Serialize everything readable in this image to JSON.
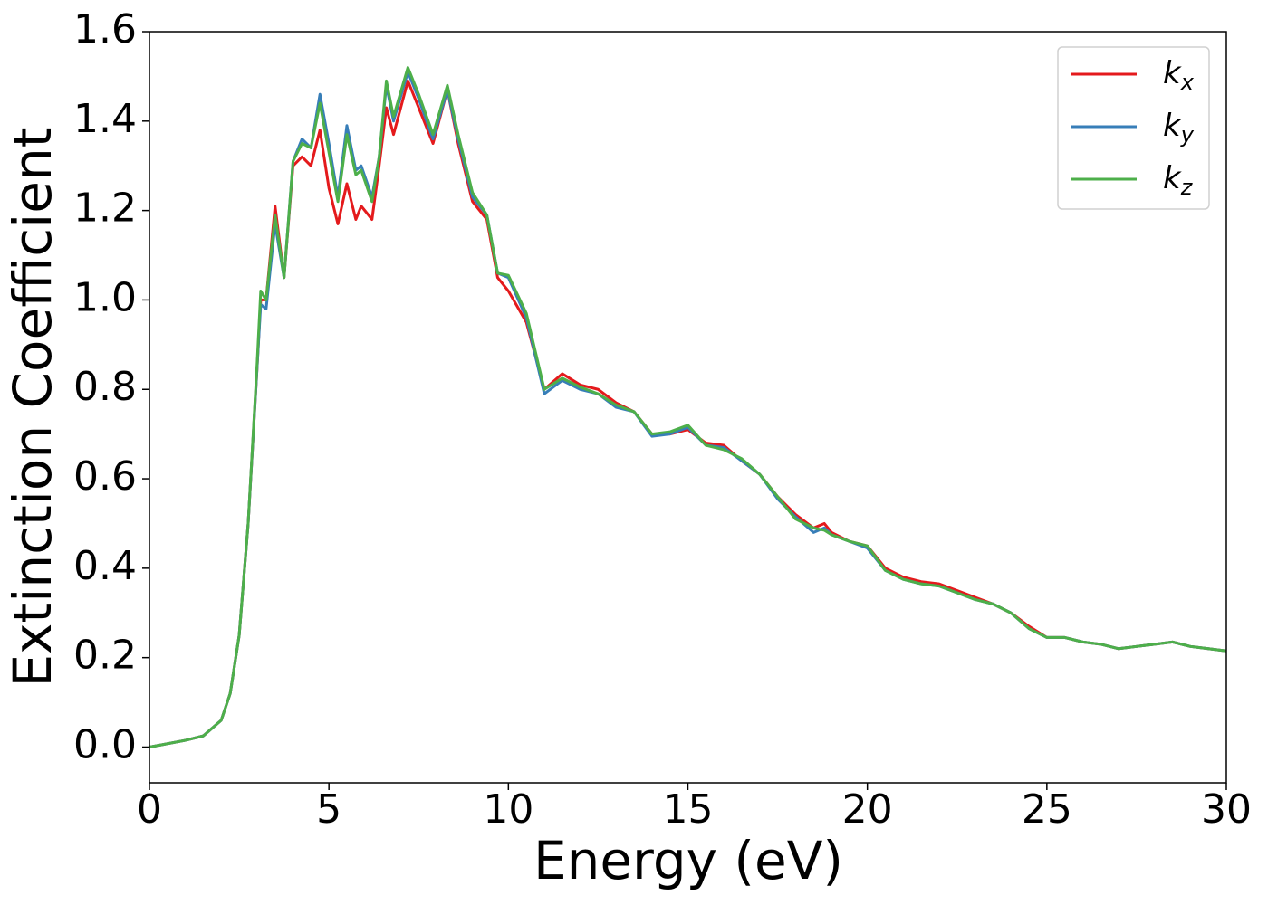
{
  "chart_data": {
    "type": "line",
    "xlabel": "Energy (eV)",
    "ylabel": "Extinction Coefficient",
    "x": [
      0,
      1,
      1.5,
      2,
      2.25,
      2.5,
      2.75,
      3,
      3.1,
      3.25,
      3.5,
      3.75,
      4,
      4.25,
      4.5,
      4.75,
      5,
      5.25,
      5.5,
      5.75,
      5.9,
      6.2,
      6.4,
      6.6,
      6.8,
      7.2,
      7.5,
      7.9,
      8.3,
      8.6,
      9,
      9.4,
      9.7,
      10,
      10.5,
      11,
      11.5,
      12,
      12.5,
      13,
      13.5,
      14,
      14.5,
      15,
      15.5,
      16,
      16.5,
      17,
      17.5,
      18,
      18.5,
      18.8,
      19,
      19.5,
      20,
      20.5,
      21,
      21.5,
      22,
      22.5,
      23,
      23.5,
      24,
      24.5,
      25,
      25.5,
      26,
      26.5,
      27,
      27.5,
      28,
      28.5,
      29,
      29.5,
      30
    ],
    "series": [
      {
        "name": "kx",
        "color": "#e41a1c",
        "values": [
          0,
          0.015,
          0.025,
          0.06,
          0.12,
          0.25,
          0.5,
          0.85,
          1.0,
          1.0,
          1.21,
          1.05,
          1.3,
          1.32,
          1.3,
          1.38,
          1.25,
          1.17,
          1.26,
          1.18,
          1.21,
          1.18,
          1.3,
          1.43,
          1.37,
          1.49,
          1.43,
          1.35,
          1.47,
          1.35,
          1.22,
          1.18,
          1.05,
          1.02,
          0.95,
          0.8,
          0.835,
          0.81,
          0.8,
          0.77,
          0.75,
          0.7,
          0.7,
          0.71,
          0.68,
          0.675,
          0.64,
          0.61,
          0.56,
          0.52,
          0.49,
          0.5,
          0.48,
          0.46,
          0.45,
          0.4,
          0.38,
          0.37,
          0.365,
          0.35,
          0.335,
          0.32,
          0.3,
          0.27,
          0.245,
          0.245,
          0.235,
          0.23,
          0.22,
          0.225,
          0.23,
          0.235,
          0.225,
          0.22,
          0.215
        ]
      },
      {
        "name": "ky",
        "color": "#377eb8",
        "values": [
          0,
          0.015,
          0.025,
          0.06,
          0.12,
          0.25,
          0.5,
          0.85,
          0.99,
          0.98,
          1.17,
          1.05,
          1.31,
          1.36,
          1.34,
          1.46,
          1.35,
          1.23,
          1.39,
          1.29,
          1.3,
          1.23,
          1.32,
          1.48,
          1.4,
          1.51,
          1.45,
          1.36,
          1.47,
          1.36,
          1.23,
          1.19,
          1.06,
          1.05,
          0.96,
          0.79,
          0.82,
          0.8,
          0.79,
          0.76,
          0.75,
          0.695,
          0.7,
          0.715,
          0.675,
          0.67,
          0.64,
          0.61,
          0.555,
          0.515,
          0.48,
          0.49,
          0.475,
          0.46,
          0.445,
          0.395,
          0.375,
          0.365,
          0.36,
          0.345,
          0.33,
          0.32,
          0.3,
          0.265,
          0.245,
          0.245,
          0.235,
          0.23,
          0.22,
          0.225,
          0.23,
          0.235,
          0.225,
          0.22,
          0.215
        ]
      },
      {
        "name": "kz",
        "color": "#4daf4a",
        "values": [
          0,
          0.015,
          0.025,
          0.06,
          0.12,
          0.25,
          0.5,
          0.86,
          1.02,
          1.0,
          1.19,
          1.05,
          1.31,
          1.35,
          1.34,
          1.44,
          1.33,
          1.22,
          1.37,
          1.28,
          1.29,
          1.22,
          1.32,
          1.49,
          1.41,
          1.52,
          1.46,
          1.37,
          1.48,
          1.37,
          1.24,
          1.19,
          1.06,
          1.055,
          0.97,
          0.8,
          0.825,
          0.805,
          0.79,
          0.765,
          0.75,
          0.7,
          0.705,
          0.72,
          0.675,
          0.665,
          0.645,
          0.61,
          0.56,
          0.51,
          0.49,
          0.485,
          0.475,
          0.46,
          0.45,
          0.395,
          0.375,
          0.365,
          0.36,
          0.345,
          0.33,
          0.32,
          0.3,
          0.265,
          0.245,
          0.245,
          0.235,
          0.23,
          0.22,
          0.225,
          0.23,
          0.235,
          0.225,
          0.22,
          0.215
        ]
      }
    ],
    "xlim": [
      0,
      30
    ],
    "xticks": [
      0,
      5,
      10,
      15,
      20,
      25,
      30
    ],
    "ylim": [
      -0.08,
      1.6
    ],
    "yticks": [
      {
        "value": 0,
        "label": "0.0"
      },
      0.2,
      0.4,
      0.6,
      0.8,
      {
        "value": 1,
        "label": "1.0"
      },
      1.2,
      1.4,
      1.6
    ],
    "grid": false,
    "legend": "upper right"
  }
}
